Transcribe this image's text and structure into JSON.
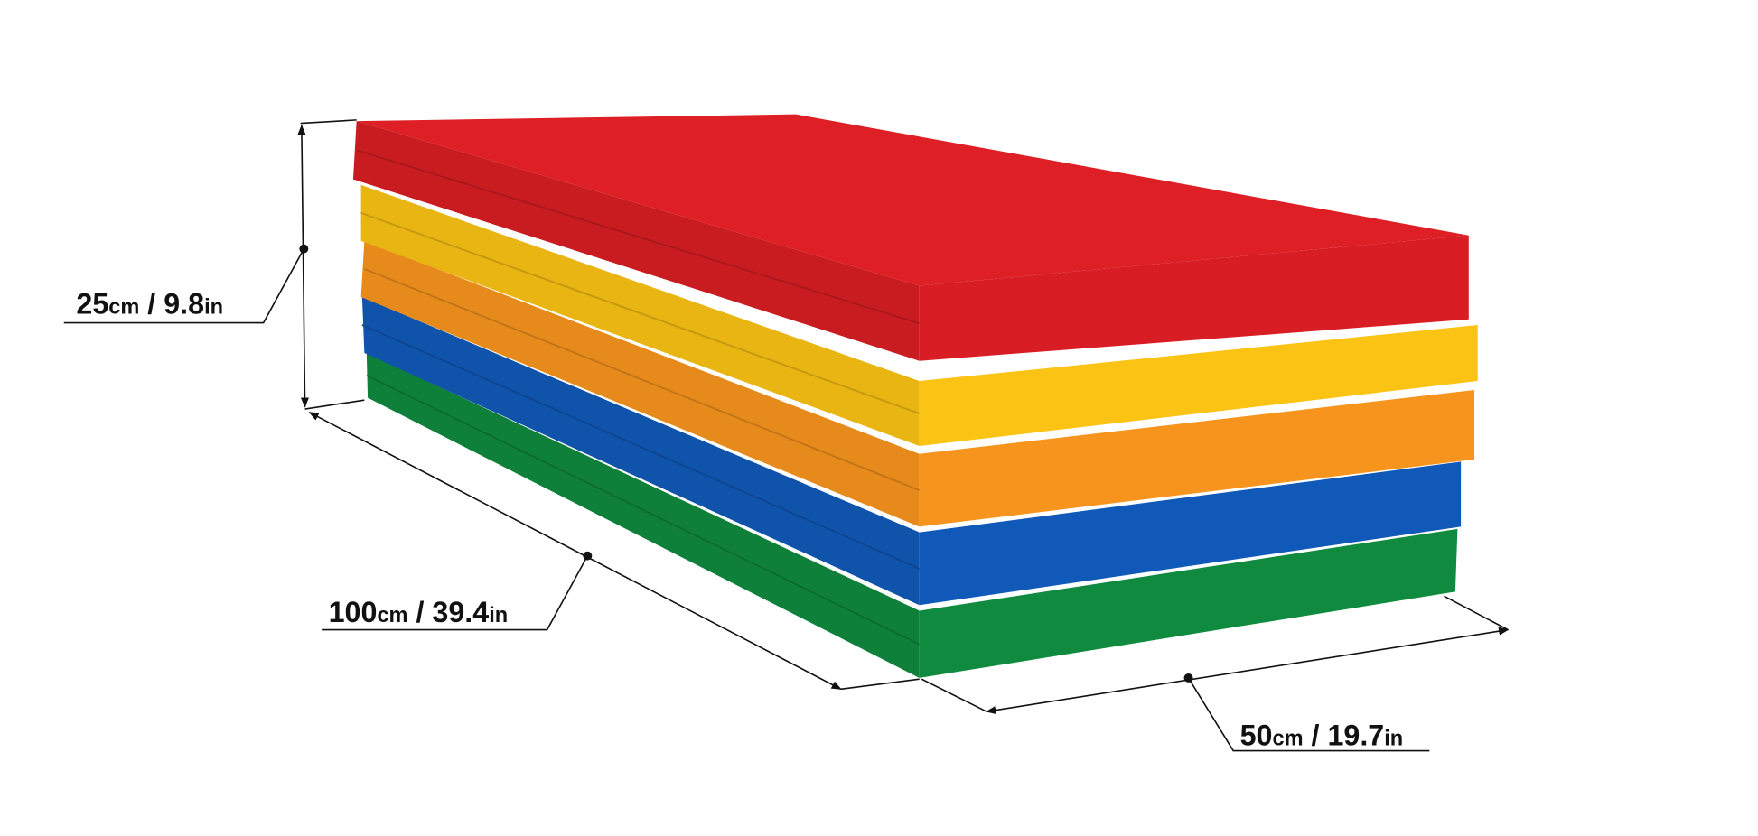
{
  "product": {
    "mat_colors": [
      "#d81e24",
      "#fbc314",
      "#f7941d",
      "#1159b8",
      "#0f8a3e"
    ]
  },
  "dimensions": {
    "height": {
      "metric": "25",
      "metric_unit": "cm",
      "separator": " / ",
      "imperial": "9.8",
      "imperial_unit": "in"
    },
    "length": {
      "metric": "100",
      "metric_unit": "cm",
      "separator": " / ",
      "imperial": "39.4",
      "imperial_unit": "in"
    },
    "width": {
      "metric": "50",
      "metric_unit": "cm",
      "separator": " / ",
      "imperial": "19.7",
      "imperial_unit": "in"
    }
  }
}
